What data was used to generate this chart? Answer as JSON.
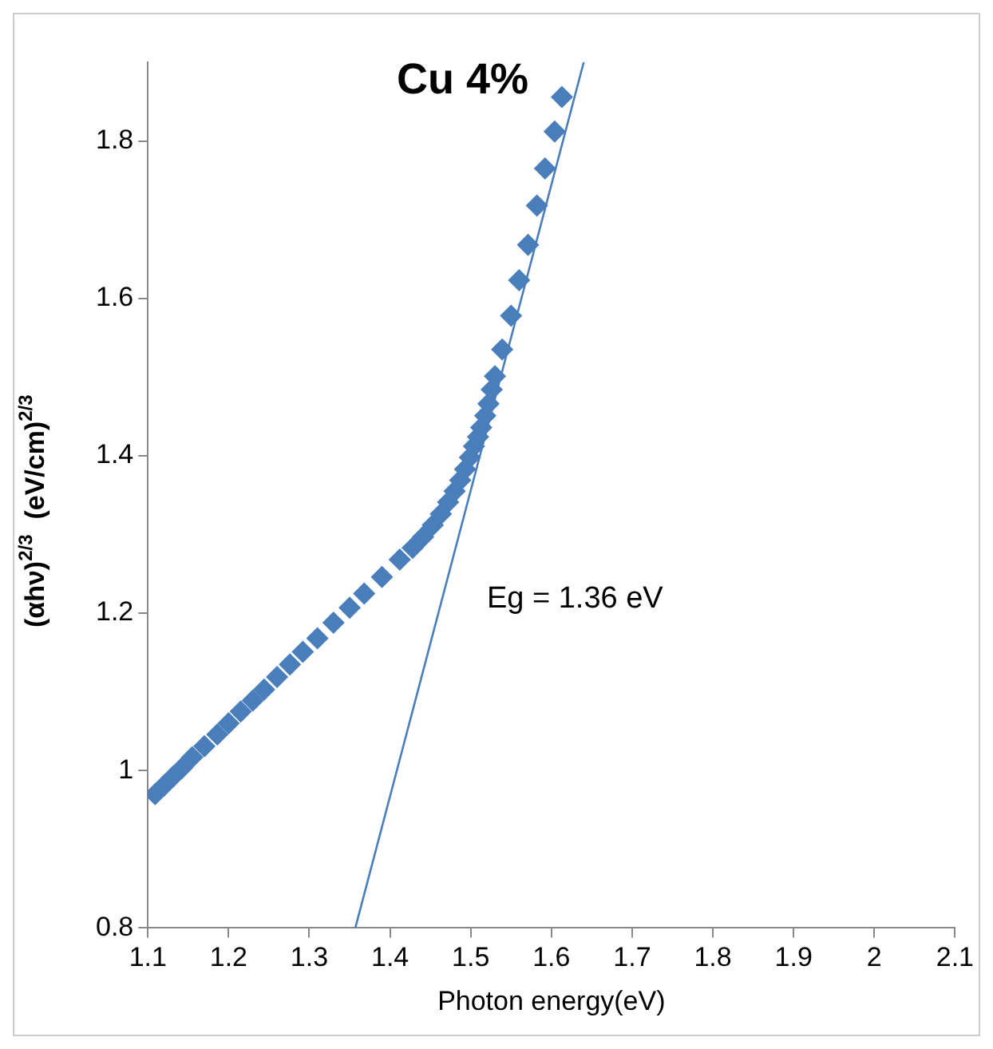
{
  "chart_data": {
    "type": "scatter",
    "title": "Cu 4%",
    "xlabel": "Photon energy(eV)",
    "ylabel": "(αhν)$^{2/3}$  (eV/cm)$^{2/3}$",
    "annotations": [
      "Eg = 1.36 eV"
    ],
    "xlim": [
      1.1,
      2.1
    ],
    "xticks": [
      1.1,
      1.2,
      1.3,
      1.4,
      1.5,
      1.6,
      1.7,
      1.8,
      1.9,
      2,
      2.1
    ],
    "ylim": [
      0.8,
      1.9
    ],
    "yticks": [
      0.8,
      {
        "value": 1,
        "label": "1"
      },
      1.2,
      1.4,
      1.6,
      1.8
    ],
    "grid": false,
    "legend": false,
    "marker": "diamond",
    "series": [
      {
        "color": "#4a7ebb",
        "x": [
          1.109,
          1.12,
          1.131,
          1.142,
          1.155,
          1.17,
          1.186,
          1.2,
          1.215,
          1.23,
          1.244,
          1.26,
          1.276,
          1.292,
          1.31,
          1.33,
          1.35,
          1.368,
          1.39,
          1.412,
          1.428,
          1.441,
          1.453,
          1.463,
          1.472,
          1.48,
          1.487,
          1.493,
          1.499,
          1.504,
          1.509,
          1.513,
          1.518,
          1.522,
          1.526,
          1.53,
          1.539,
          1.55,
          1.56,
          1.571,
          1.582,
          1.592,
          1.604,
          1.613
        ],
        "values": [
          0.97,
          0.981,
          0.992,
          1.003,
          1.017,
          1.031,
          1.046,
          1.06,
          1.075,
          1.089,
          1.103,
          1.119,
          1.135,
          1.151,
          1.168,
          1.188,
          1.207,
          1.225,
          1.246,
          1.268,
          1.283,
          1.297,
          1.312,
          1.326,
          1.341,
          1.355,
          1.369,
          1.383,
          1.398,
          1.412,
          1.424,
          1.436,
          1.451,
          1.466,
          1.484,
          1.501,
          1.535,
          1.578,
          1.623,
          1.668,
          1.718,
          1.765,
          1.812,
          1.856
        ]
      },
      {
        "type": "line",
        "color": "#4a7ebb",
        "marker": "none",
        "x": [
          1.357,
          1.64
        ],
        "values": [
          0.8,
          1.9
        ]
      }
    ]
  }
}
